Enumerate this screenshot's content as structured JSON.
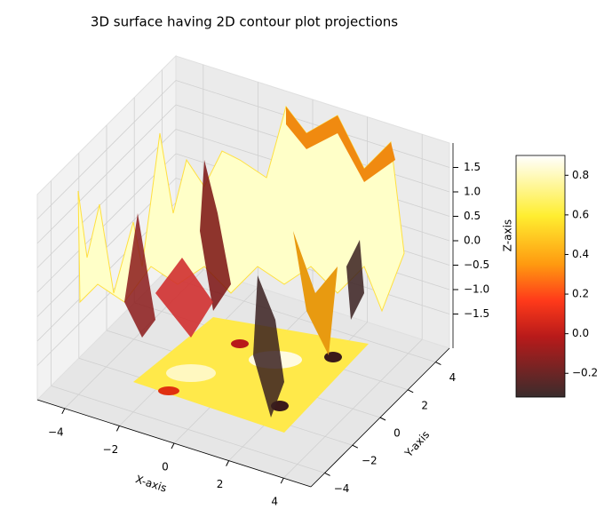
{
  "chart_data": {
    "type": "surface3d",
    "title": "3D surface having 2D contour plot projections",
    "x_label": "X-axis",
    "y_label": "Y-axis",
    "z_label": "Z-axis",
    "xlim": [
      -5,
      5
    ],
    "ylim": [
      -5,
      5
    ],
    "zlim": [
      -2.2,
      2.0
    ],
    "xticks": [
      {
        "value": -4,
        "label": "−4"
      },
      {
        "value": -2,
        "label": "−2"
      },
      0,
      2,
      4
    ],
    "yticks": [
      {
        "value": -4,
        "label": "−4"
      },
      {
        "value": -2,
        "label": "−2"
      },
      0,
      2,
      4
    ],
    "zticks": [
      {
        "value": -1.5,
        "label": "−1.5"
      },
      {
        "value": -1.0,
        "label": "−1.0"
      },
      {
        "value": -0.5,
        "label": "−0.5"
      },
      {
        "value": 0,
        "label": "0.0"
      },
      0.5,
      {
        "value": 1.0,
        "label": "1.0"
      },
      1.5
    ],
    "grid": true,
    "colormap": "hot",
    "colorbar": {
      "lim": [
        -0.32,
        0.9
      ],
      "ticks": [
        {
          "value": -0.2,
          "label": "−0.2"
        },
        {
          "value": 0,
          "label": "0.0"
        },
        0.2,
        0.4,
        0.6,
        0.8
      ]
    }
  }
}
